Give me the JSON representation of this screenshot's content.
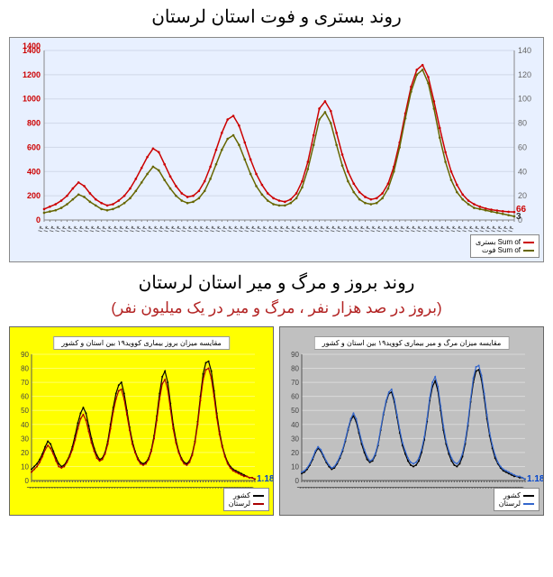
{
  "top_chart": {
    "title": "روند بستری و فوت استان لرستان",
    "type": "line",
    "background_color": "#e8f0ff",
    "grid_color": "#d0d8e8",
    "y_left": {
      "min": 0,
      "max": 1400,
      "step": 200,
      "color": "#cc0000",
      "end_label": "1400",
      "final_value_label": "66"
    },
    "y_right": {
      "min": 0,
      "max": 140,
      "step": 20,
      "color": "#555555",
      "final_value_label": "3"
    },
    "series": [
      {
        "name": "بستری",
        "legend_label": "Sum of بستری",
        "color": "#cc0000",
        "width": 1.5,
        "values": [
          90,
          110,
          130,
          160,
          200,
          260,
          310,
          280,
          220,
          170,
          140,
          120,
          130,
          160,
          200,
          260,
          340,
          430,
          520,
          590,
          560,
          460,
          360,
          280,
          220,
          190,
          200,
          240,
          320,
          440,
          580,
          720,
          830,
          860,
          780,
          640,
          500,
          380,
          290,
          220,
          180,
          160,
          150,
          170,
          220,
          320,
          480,
          700,
          920,
          980,
          900,
          720,
          540,
          400,
          300,
          230,
          190,
          170,
          180,
          220,
          300,
          440,
          640,
          880,
          1100,
          1240,
          1280,
          1180,
          980,
          760,
          560,
          400,
          290,
          210,
          160,
          130,
          110,
          95,
          85,
          78,
          72,
          68,
          66
        ]
      },
      {
        "name": "فوت",
        "legend_label": "Sum of فوت",
        "color": "#666600",
        "width": 1.5,
        "values": [
          6,
          7,
          8,
          10,
          13,
          17,
          21,
          19,
          15,
          12,
          9,
          8,
          9,
          11,
          14,
          18,
          24,
          31,
          38,
          44,
          41,
          33,
          26,
          20,
          16,
          14,
          15,
          18,
          24,
          34,
          46,
          58,
          67,
          70,
          62,
          50,
          38,
          28,
          21,
          16,
          13,
          12,
          12,
          14,
          18,
          27,
          42,
          62,
          83,
          89,
          80,
          62,
          45,
          32,
          23,
          17,
          14,
          13,
          14,
          18,
          26,
          40,
          60,
          84,
          106,
          120,
          124,
          113,
          92,
          68,
          48,
          33,
          23,
          17,
          13,
          10,
          9,
          8,
          7,
          6,
          5,
          4,
          3
        ]
      }
    ],
    "x_labels_rot": -65
  },
  "bottom": {
    "title": "روند بروز و مرگ و میر استان لرستان",
    "subtitle": "(بروز در صد هزار نفر ، مرگ و میر در یک میلیون نفر)",
    "left": {
      "inner_title": "مقایسه میزان بروز بیماری کووید۱۹ بین استان و کشور",
      "background_color": "#ffff00",
      "y": {
        "min": 0,
        "max": 90,
        "step": 10,
        "end_label": "1.18"
      },
      "series": [
        {
          "name": "کشور",
          "color": "#000000",
          "values": [
            8,
            10,
            12,
            15,
            19,
            24,
            28,
            26,
            21,
            16,
            12,
            10,
            11,
            14,
            18,
            24,
            32,
            41,
            48,
            52,
            48,
            39,
            30,
            23,
            18,
            15,
            16,
            20,
            28,
            40,
            52,
            62,
            68,
            70,
            62,
            50,
            38,
            28,
            21,
            16,
            13,
            12,
            13,
            16,
            22,
            32,
            46,
            62,
            74,
            78,
            70,
            55,
            40,
            29,
            21,
            16,
            13,
            12,
            14,
            19,
            28,
            42,
            60,
            76,
            84,
            85,
            78,
            64,
            48,
            35,
            25,
            18,
            13,
            10,
            8,
            7,
            6,
            5,
            4,
            3,
            2,
            2,
            1
          ]
        },
        {
          "name": "لرستان",
          "color": "#aa0000",
          "values": [
            6,
            8,
            10,
            13,
            17,
            22,
            25,
            23,
            19,
            14,
            10,
            9,
            10,
            13,
            17,
            22,
            29,
            37,
            44,
            47,
            43,
            35,
            27,
            21,
            16,
            14,
            15,
            19,
            26,
            37,
            49,
            58,
            64,
            65,
            58,
            47,
            36,
            26,
            20,
            15,
            12,
            11,
            12,
            15,
            21,
            30,
            43,
            58,
            69,
            72,
            65,
            51,
            37,
            27,
            20,
            15,
            12,
            11,
            13,
            18,
            27,
            40,
            57,
            72,
            79,
            80,
            73,
            60,
            45,
            33,
            24,
            17,
            12,
            9,
            7,
            6,
            5,
            4,
            3,
            3,
            2,
            2,
            1
          ]
        }
      ]
    },
    "right": {
      "inner_title": "مقایسه میزان مرگ و میر بیماری کووید۱۹ بین استان و کشور",
      "background_color": "#c0c0c0",
      "y": {
        "min": 0,
        "max": 90,
        "step": 10,
        "end_label": "1.18"
      },
      "series": [
        {
          "name": "کشور",
          "color": "#000000",
          "values": [
            5,
            6,
            8,
            11,
            15,
            20,
            23,
            21,
            17,
            13,
            10,
            8,
            9,
            12,
            16,
            21,
            28,
            36,
            43,
            46,
            42,
            34,
            26,
            20,
            15,
            13,
            14,
            18,
            25,
            36,
            47,
            56,
            62,
            63,
            56,
            45,
            34,
            25,
            19,
            14,
            11,
            10,
            11,
            14,
            20,
            29,
            42,
            57,
            67,
            71,
            64,
            50,
            36,
            26,
            19,
            14,
            11,
            10,
            12,
            17,
            26,
            39,
            56,
            70,
            78,
            79,
            72,
            59,
            44,
            32,
            23,
            16,
            12,
            9,
            7,
            6,
            5,
            4,
            3,
            3,
            2,
            2,
            1
          ]
        },
        {
          "name": "لرستان",
          "color": "#3366cc",
          "values": [
            6,
            7,
            9,
            12,
            16,
            21,
            24,
            22,
            18,
            14,
            11,
            9,
            10,
            13,
            17,
            22,
            29,
            37,
            44,
            48,
            44,
            36,
            28,
            22,
            17,
            14,
            15,
            19,
            26,
            37,
            48,
            57,
            63,
            65,
            58,
            47,
            36,
            27,
            21,
            16,
            13,
            12,
            13,
            16,
            22,
            31,
            44,
            59,
            70,
            74,
            67,
            53,
            39,
            28,
            21,
            16,
            13,
            12,
            14,
            19,
            28,
            41,
            58,
            73,
            81,
            82,
            75,
            62,
            47,
            34,
            25,
            18,
            13,
            10,
            8,
            7,
            6,
            5,
            4,
            3,
            3,
            2,
            1
          ]
        }
      ]
    }
  }
}
